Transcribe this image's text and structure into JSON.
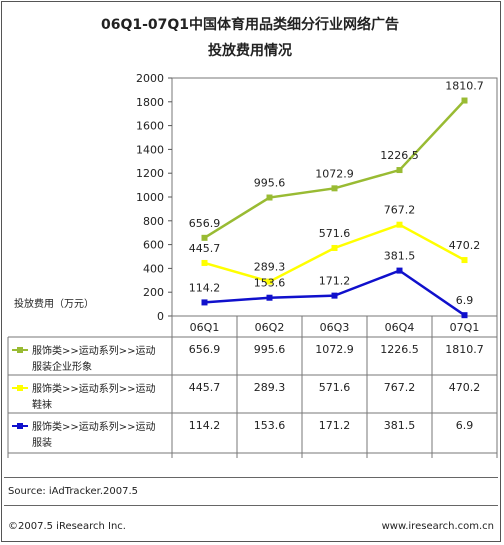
{
  "title_line1": "06Q1-07Q1中国体育用品类细分行业网络广告",
  "title_line2": "投放费用情况",
  "source": "Source: iAdTracker.2007.5",
  "footer_left": "©2007.5 iResearch Inc.",
  "footer_right": "www.iresearch.com.cn",
  "chart_data": {
    "type": "line",
    "title": "06Q1-07Q1中国体育用品类细分行业网络广告投放费用情况",
    "ylabel": "投放费用（万元）",
    "ylim": [
      0,
      2000
    ],
    "yticks": [
      0,
      200,
      400,
      600,
      800,
      1000,
      1200,
      1400,
      1600,
      1800,
      2000
    ],
    "categories": [
      "06Q1",
      "06Q2",
      "06Q3",
      "06Q4",
      "07Q1"
    ],
    "grid": false,
    "data_table": true,
    "series": [
      {
        "name": "服饰类>>运动系列>>运动服装企业形象",
        "name_lines": [
          "服饰类>>运动系列>>运动",
          "服装企业形象"
        ],
        "color": "#99bb33",
        "values": [
          656.9,
          995.6,
          1072.9,
          1226.5,
          1810.7
        ],
        "labels": [
          "656.9",
          "995.6",
          "1072.9",
          "1226.5",
          "1810.7"
        ]
      },
      {
        "name": "服饰类>>运动系列>>运动鞋袜",
        "name_lines": [
          "服饰类>>运动系列>>运动",
          "鞋袜"
        ],
        "color": "#ffff00",
        "values": [
          445.7,
          289.3,
          571.6,
          767.2,
          470.2
        ],
        "labels": [
          "445.7",
          "289.3",
          "571.6",
          "767.2",
          "470.2"
        ]
      },
      {
        "name": "服饰类>>运动系列>>运动服装",
        "name_lines": [
          "服饰类>>运动系列>>运动",
          "服装"
        ],
        "color": "#1010cc",
        "values": [
          114.2,
          153.6,
          171.2,
          381.5,
          6.9
        ],
        "labels": [
          "114.2",
          "153.6",
          "171.2",
          "381.5",
          "6.9"
        ]
      }
    ]
  }
}
